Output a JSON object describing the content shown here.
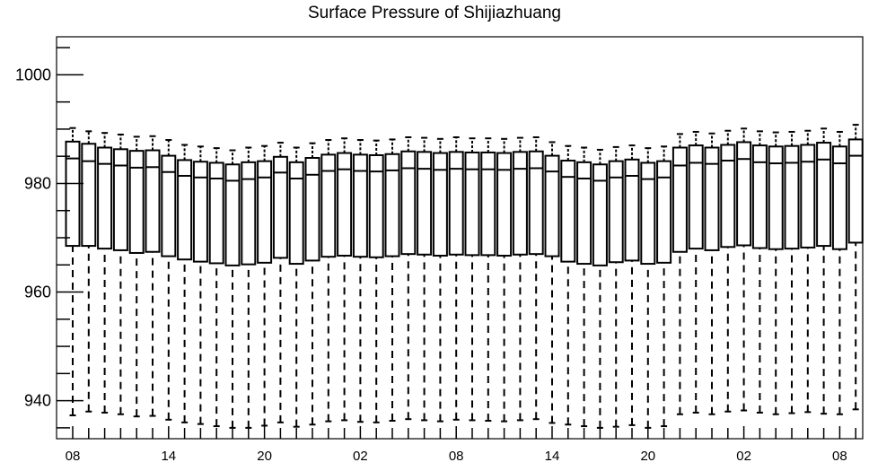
{
  "chart_data": {
    "type": "box",
    "title": "Surface Pressure of Shijiazhuang",
    "xlabel": "",
    "ylabel": "",
    "ylim": [
      933,
      1007
    ],
    "yticks": [
      940,
      960,
      980,
      1000
    ],
    "xtick_labels": [
      "08",
      "14",
      "20",
      "02",
      "08",
      "14",
      "20",
      "02",
      "08"
    ],
    "xtick_positions": [
      0,
      6,
      12,
      18,
      24,
      30,
      36,
      42,
      48
    ],
    "grid": false,
    "boxes": [
      {
        "x": 0,
        "low": 937.3,
        "q1": 968.5,
        "median": 984.6,
        "q3": 987.7,
        "high": 990.2
      },
      {
        "x": 1,
        "low": 938.0,
        "q1": 968.5,
        "median": 984.1,
        "q3": 987.3,
        "high": 989.6
      },
      {
        "x": 2,
        "low": 937.8,
        "q1": 968.0,
        "median": 983.6,
        "q3": 986.6,
        "high": 989.3
      },
      {
        "x": 3,
        "low": 937.5,
        "q1": 967.7,
        "median": 983.3,
        "q3": 986.3,
        "high": 989.0
      },
      {
        "x": 4,
        "low": 937.1,
        "q1": 967.2,
        "median": 982.9,
        "q3": 986.0,
        "high": 988.6
      },
      {
        "x": 5,
        "low": 937.2,
        "q1": 967.4,
        "median": 983.0,
        "q3": 986.1,
        "high": 988.7
      },
      {
        "x": 6,
        "low": 936.5,
        "q1": 966.6,
        "median": 982.1,
        "q3": 985.1,
        "high": 988.0
      },
      {
        "x": 7,
        "low": 936.0,
        "q1": 966.0,
        "median": 981.4,
        "q3": 984.3,
        "high": 987.1
      },
      {
        "x": 8,
        "low": 935.7,
        "q1": 965.6,
        "median": 981.1,
        "q3": 984.0,
        "high": 986.8
      },
      {
        "x": 9,
        "low": 935.3,
        "q1": 965.3,
        "median": 980.9,
        "q3": 983.8,
        "high": 986.5
      },
      {
        "x": 10,
        "low": 935.0,
        "q1": 964.9,
        "median": 980.5,
        "q3": 983.5,
        "high": 986.1
      },
      {
        "x": 11,
        "low": 935.0,
        "q1": 965.1,
        "median": 980.8,
        "q3": 983.9,
        "high": 986.6
      },
      {
        "x": 12,
        "low": 935.4,
        "q1": 965.4,
        "median": 981.1,
        "q3": 984.1,
        "high": 986.9
      },
      {
        "x": 13,
        "low": 936.0,
        "q1": 966.3,
        "median": 982.0,
        "q3": 984.9,
        "high": 987.5
      },
      {
        "x": 14,
        "low": 935.2,
        "q1": 965.2,
        "median": 980.9,
        "q3": 983.9,
        "high": 986.6
      },
      {
        "x": 15,
        "low": 935.6,
        "q1": 965.8,
        "median": 981.6,
        "q3": 984.7,
        "high": 987.4
      },
      {
        "x": 16,
        "low": 936.2,
        "q1": 966.5,
        "median": 982.3,
        "q3": 985.3,
        "high": 988.0
      },
      {
        "x": 17,
        "low": 936.4,
        "q1": 966.7,
        "median": 982.6,
        "q3": 985.6,
        "high": 988.3
      },
      {
        "x": 18,
        "low": 936.1,
        "q1": 966.5,
        "median": 982.3,
        "q3": 985.3,
        "high": 988.0
      },
      {
        "x": 19,
        "low": 936.0,
        "q1": 966.4,
        "median": 982.2,
        "q3": 985.2,
        "high": 987.9
      },
      {
        "x": 20,
        "low": 936.3,
        "q1": 966.6,
        "median": 982.4,
        "q3": 985.4,
        "high": 988.1
      },
      {
        "x": 21,
        "low": 936.6,
        "q1": 967.0,
        "median": 982.8,
        "q3": 985.9,
        "high": 988.5
      },
      {
        "x": 22,
        "low": 936.4,
        "q1": 966.9,
        "median": 982.7,
        "q3": 985.8,
        "high": 988.4
      },
      {
        "x": 23,
        "low": 936.2,
        "q1": 966.7,
        "median": 982.5,
        "q3": 985.6,
        "high": 988.2
      },
      {
        "x": 24,
        "low": 936.5,
        "q1": 966.9,
        "median": 982.7,
        "q3": 985.8,
        "high": 988.5
      },
      {
        "x": 25,
        "low": 936.4,
        "q1": 966.8,
        "median": 982.6,
        "q3": 985.7,
        "high": 988.3
      },
      {
        "x": 26,
        "low": 936.3,
        "q1": 966.8,
        "median": 982.6,
        "q3": 985.7,
        "high": 988.3
      },
      {
        "x": 27,
        "low": 936.2,
        "q1": 966.7,
        "median": 982.5,
        "q3": 985.6,
        "high": 988.2
      },
      {
        "x": 28,
        "low": 936.4,
        "q1": 966.9,
        "median": 982.7,
        "q3": 985.8,
        "high": 988.4
      },
      {
        "x": 29,
        "low": 936.6,
        "q1": 967.0,
        "median": 982.8,
        "q3": 985.9,
        "high": 988.5
      },
      {
        "x": 30,
        "low": 935.9,
        "q1": 966.6,
        "median": 982.2,
        "q3": 985.1,
        "high": 987.6
      },
      {
        "x": 31,
        "low": 935.6,
        "q1": 965.6,
        "median": 981.2,
        "q3": 984.2,
        "high": 986.9
      },
      {
        "x": 32,
        "low": 935.3,
        "q1": 965.2,
        "median": 980.9,
        "q3": 983.9,
        "high": 986.6
      },
      {
        "x": 33,
        "low": 935.0,
        "q1": 964.9,
        "median": 980.5,
        "q3": 983.5,
        "high": 986.2
      },
      {
        "x": 34,
        "low": 935.2,
        "q1": 965.5,
        "median": 981.1,
        "q3": 984.1,
        "high": 986.7
      },
      {
        "x": 35,
        "low": 935.5,
        "q1": 965.8,
        "median": 981.4,
        "q3": 984.4,
        "high": 987.0
      },
      {
        "x": 36,
        "low": 935.0,
        "q1": 965.2,
        "median": 980.8,
        "q3": 983.8,
        "high": 986.5
      },
      {
        "x": 37,
        "low": 935.3,
        "q1": 965.4,
        "median": 981.1,
        "q3": 984.1,
        "high": 986.8
      },
      {
        "x": 38,
        "low": 937.5,
        "q1": 967.4,
        "median": 983.3,
        "q3": 986.6,
        "high": 989.1
      },
      {
        "x": 39,
        "low": 937.8,
        "q1": 968.0,
        "median": 983.8,
        "q3": 987.0,
        "high": 989.5
      },
      {
        "x": 40,
        "low": 937.5,
        "q1": 967.7,
        "median": 983.6,
        "q3": 986.6,
        "high": 989.2
      },
      {
        "x": 41,
        "low": 938.0,
        "q1": 968.3,
        "median": 984.2,
        "q3": 987.1,
        "high": 989.7
      },
      {
        "x": 42,
        "low": 938.2,
        "q1": 968.6,
        "median": 984.5,
        "q3": 987.6,
        "high": 990.1
      },
      {
        "x": 43,
        "low": 937.8,
        "q1": 968.1,
        "median": 983.9,
        "q3": 987.0,
        "high": 989.6
      },
      {
        "x": 44,
        "low": 937.5,
        "q1": 967.9,
        "median": 983.7,
        "q3": 986.8,
        "high": 989.4
      },
      {
        "x": 45,
        "low": 937.7,
        "q1": 968.0,
        "median": 983.8,
        "q3": 986.9,
        "high": 989.5
      },
      {
        "x": 46,
        "low": 937.9,
        "q1": 968.2,
        "median": 984.0,
        "q3": 987.1,
        "high": 989.7
      },
      {
        "x": 47,
        "low": 937.6,
        "q1": 968.5,
        "median": 984.4,
        "q3": 987.5,
        "high": 990.1
      },
      {
        "x": 48,
        "low": 937.5,
        "q1": 967.9,
        "median": 983.7,
        "q3": 986.8,
        "high": 989.5
      },
      {
        "x": 49,
        "low": 938.4,
        "q1": 969.1,
        "median": 985.1,
        "q3": 988.1,
        "high": 990.8
      }
    ]
  }
}
